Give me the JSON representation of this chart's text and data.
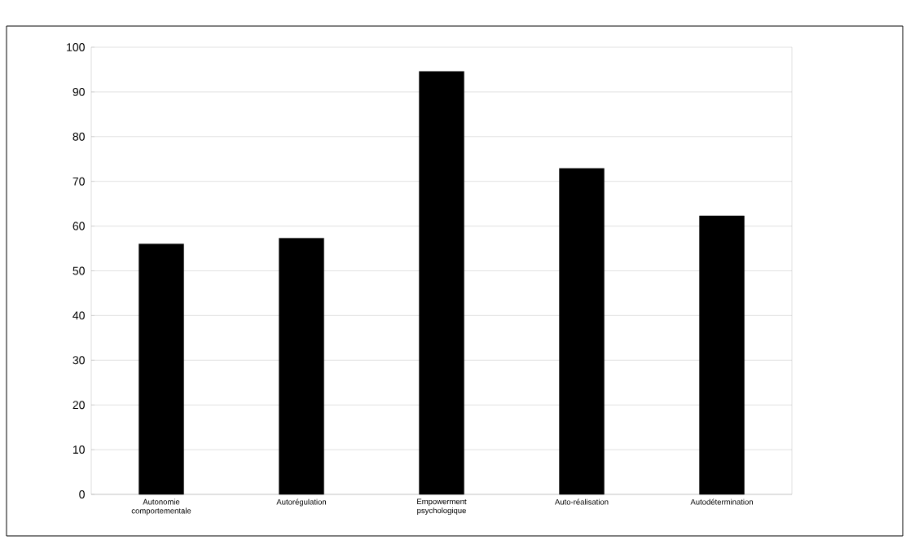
{
  "chart_data": {
    "type": "bar",
    "categories": [
      "Autonomie comportementale",
      "Autorégulation",
      "Empowerment psychologique",
      "Auto-réalisation",
      "Autodétermination"
    ],
    "values": [
      56,
      57.3,
      94.6,
      72.9,
      62.3
    ],
    "color": "#000000",
    "ylim": [
      0,
      100
    ],
    "yticks": [
      0,
      10,
      20,
      30,
      40,
      50,
      60,
      70,
      80,
      90,
      100
    ],
    "grid": "y"
  }
}
